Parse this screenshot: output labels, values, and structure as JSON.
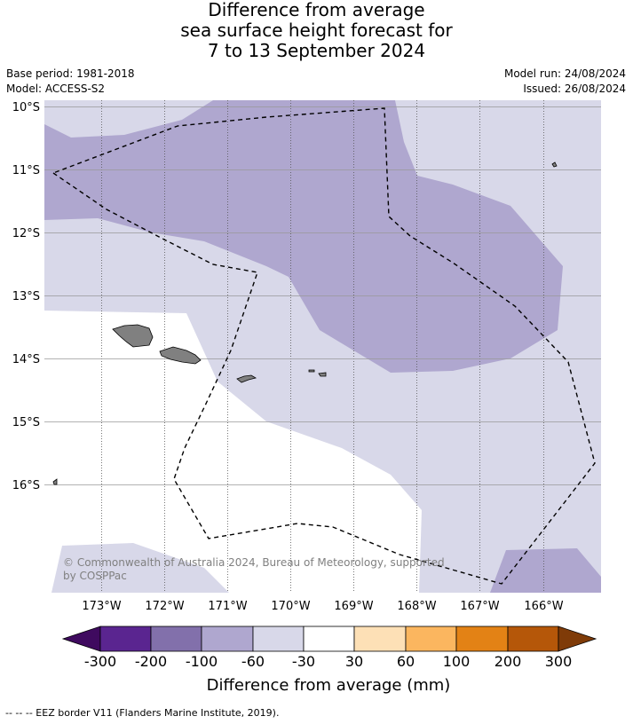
{
  "title": {
    "line1": "Difference from average",
    "line2": "sea surface height forecast for",
    "line3": "7 to 13 September 2024"
  },
  "meta": {
    "base_period": "Base period: 1981-2018",
    "model": "Model: ACCESS-S2",
    "model_run": "Model run: 24/08/2024",
    "issued": "Issued: 26/08/2024"
  },
  "map": {
    "lat_labels": [
      "10°S",
      "11°S",
      "12°S",
      "13°S",
      "14°S",
      "15°S",
      "16°S"
    ],
    "lon_labels": [
      "173°W",
      "172°W",
      "171°W",
      "170°W",
      "169°W",
      "168°W",
      "167°W",
      "166°W"
    ],
    "copyright_line1": "© Commonwealth of Australia 2024, Bureau of Meteorology, supported",
    "copyright_line2": "by COSPPac"
  },
  "legend": {
    "title": "Difference from average (mm)",
    "ticks": [
      "-300",
      "-200",
      "-100",
      "-60",
      "-30",
      "30",
      "60",
      "100",
      "200",
      "300"
    ],
    "colors": [
      "#3f0a5f",
      "#5a2590",
      "#8270ab",
      "#afa7cf",
      "#d8d8e9",
      "#ffffff",
      "#fde0b6",
      "#fbb65f",
      "#e38215",
      "#b55709",
      "#7f3b08"
    ]
  },
  "footer": "--  --  -- EEZ border V11 (Flanders Marine Institute, 2019)."
}
